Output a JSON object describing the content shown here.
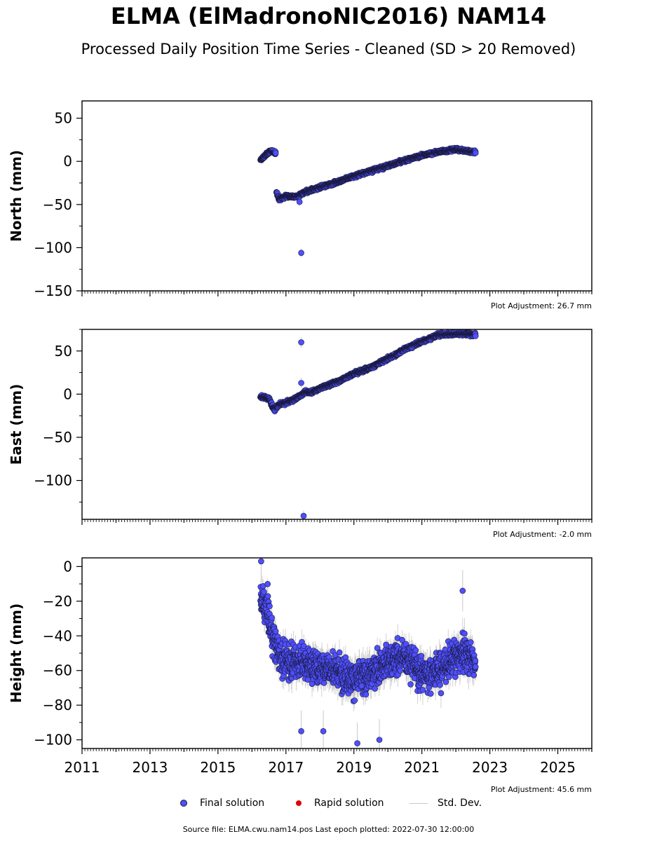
{
  "figure": {
    "title": "ELMA (ElMadronoNIC2016) NAM14",
    "subtitle": "Processed Daily Position Time Series - Cleaned (SD > 20 Removed)",
    "footer": "Source file: ELMA.cwu.nam14.pos  Last epoch plotted: 2022-07-30 12:00:00",
    "legend": {
      "final": "Final solution",
      "rapid": "Rapid solution",
      "std": "Std. Dev."
    },
    "colors": {
      "final": "#4f4fff",
      "rapid": "#e00000",
      "std": "#c8c8c8"
    },
    "x_tick_labels": [
      "2011",
      "2013",
      "2015",
      "2017",
      "2019",
      "2021",
      "2023",
      "2025"
    ]
  },
  "chart_data": [
    {
      "type": "scatter",
      "ylabel": "North (mm)",
      "xlim": [
        2011.0,
        2026.0
      ],
      "ylim": [
        -150,
        70
      ],
      "yticks": [
        50,
        0,
        -50,
        -100,
        -150
      ],
      "y_tick_labels": [
        "50",
        "0",
        "−50",
        "−100",
        "−150"
      ],
      "plot_adjustment": "Plot Adjustment: 26.7 mm",
      "series": [
        {
          "name": "Final solution",
          "segments": [
            {
              "x": [
                2016.25,
                2016.45,
                2016.55,
                2016.7
              ],
              "y": [
                1,
                9,
                12,
                10
              ]
            },
            {
              "x": [
                2016.72,
                2016.8,
                2017.0,
                2017.3,
                2017.55,
                2017.8,
                2018.0,
                2018.5,
                2019.0,
                2019.5,
                2020.0,
                2020.5,
                2021.0,
                2021.5,
                2022.0,
                2022.3,
                2022.58
              ],
              "y": [
                -35,
                -44,
                -40,
                -41,
                -36,
                -33,
                -30,
                -24,
                -17,
                -11,
                -5,
                1,
                7,
                11,
                14,
                12,
                11
              ]
            }
          ],
          "outliers": [
            {
              "x": 2017.45,
              "y": -106
            },
            {
              "x": 2017.4,
              "y": -47
            }
          ]
        }
      ]
    },
    {
      "type": "scatter",
      "ylabel": "East (mm)",
      "xlim": [
        2011.0,
        2026.0
      ],
      "ylim": [
        -145,
        75
      ],
      "yticks": [
        50,
        0,
        -50,
        -100
      ],
      "y_tick_labels": [
        "50",
        "0",
        "−50",
        "−100"
      ],
      "plot_adjustment": "Plot Adjustment: -2.0 mm",
      "series": [
        {
          "name": "Final solution",
          "segments": [
            {
              "x": [
                2016.25,
                2016.5,
                2016.65,
                2016.8,
                2017.0,
                2017.3,
                2017.55,
                2017.8,
                2018.0,
                2018.5,
                2019.0,
                2019.5,
                2020.0,
                2020.5,
                2021.0,
                2021.5,
                2022.0,
                2022.3,
                2022.58
              ],
              "y": [
                -3,
                -5,
                -18,
                -12,
                -10,
                -5,
                2,
                3,
                7,
                14,
                24,
                31,
                41,
                52,
                61,
                69,
                70,
                70,
                69
              ]
            }
          ],
          "outliers": [
            {
              "x": 2017.45,
              "y": 60
            },
            {
              "x": 2017.45,
              "y": 13
            },
            {
              "x": 2017.52,
              "y": -141
            }
          ]
        }
      ]
    },
    {
      "type": "scatter",
      "ylabel": "Height (mm)",
      "xlim": [
        2011.0,
        2026.0
      ],
      "ylim": [
        -105,
        5
      ],
      "yticks": [
        0,
        -20,
        -40,
        -60,
        -80,
        -100
      ],
      "y_tick_labels": [
        "0",
        "−20",
        "−40",
        "−60",
        "−80",
        "−100"
      ],
      "plot_adjustment": "Plot Adjustment: 45.6 mm",
      "series": [
        {
          "name": "Final solution",
          "segments": [
            {
              "x": [
                2016.25,
                2016.45,
                2016.6,
                2016.8,
                2017.0,
                2017.5,
                2017.8,
                2018.0,
                2018.5,
                2019.0,
                2019.5,
                2020.0,
                2020.5,
                2021.0,
                2021.5,
                2022.0,
                2022.3,
                2022.58
              ],
              "y": [
                -20,
                -25,
                -40,
                -50,
                -55,
                -55,
                -58,
                -58,
                -60,
                -65,
                -62,
                -55,
                -52,
                -62,
                -60,
                -52,
                -50,
                -55
              ]
            }
          ],
          "outliers": [
            {
              "x": 2016.27,
              "y": 3
            },
            {
              "x": 2017.45,
              "y": -95
            },
            {
              "x": 2018.1,
              "y": -95
            },
            {
              "x": 2019.1,
              "y": -102
            },
            {
              "x": 2019.75,
              "y": -100
            },
            {
              "x": 2022.2,
              "y": -14
            }
          ]
        }
      ]
    }
  ]
}
